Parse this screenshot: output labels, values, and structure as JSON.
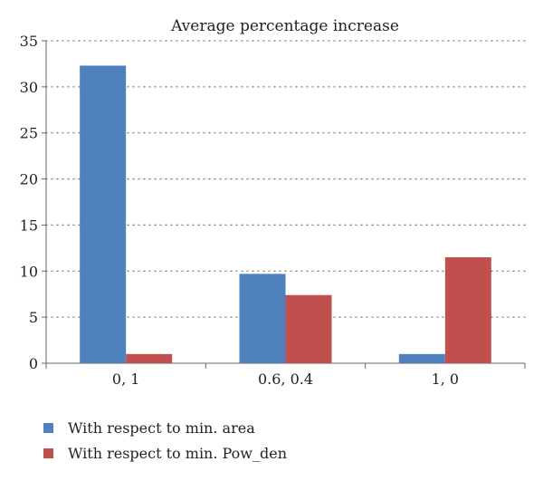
{
  "chart_data": {
    "type": "bar",
    "title": "Average percentage increase",
    "xlabel": "",
    "ylabel": "",
    "categories": [
      "0, 1",
      "0.6, 0.4",
      "1, 0"
    ],
    "series": [
      {
        "name": "With respect to min. area",
        "values": [
          32.3,
          9.7,
          1.0
        ],
        "color": "#4F81BD"
      },
      {
        "name": "With respect to min. Pow_den",
        "values": [
          1.0,
          7.4,
          11.5
        ],
        "color": "#C0504D"
      }
    ],
    "ylim": [
      0,
      35
    ],
    "yticks": [
      0,
      5,
      10,
      15,
      20,
      25,
      30,
      35
    ],
    "grid": true,
    "legend_position": "bottom-left"
  }
}
